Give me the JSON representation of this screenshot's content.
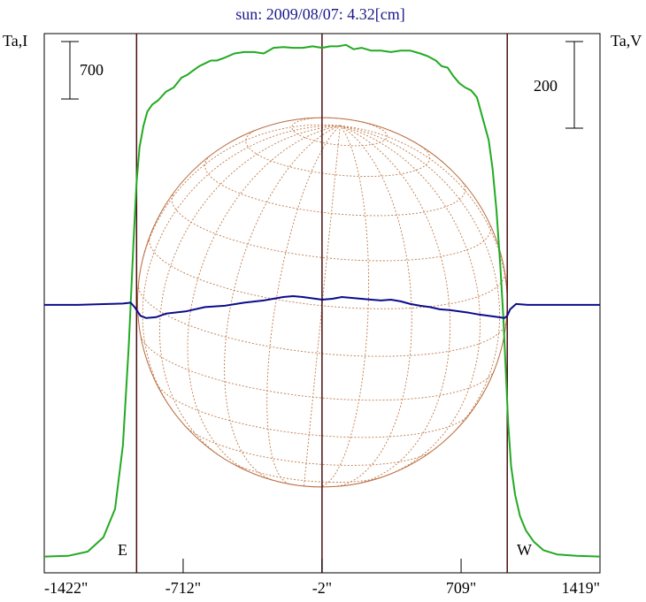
{
  "chart_data": {
    "type": "line",
    "title": "sun: 2009/08/07: 4.32[cm]",
    "ylabel_left": "Ta,I",
    "ylabel_right": "Ta,V",
    "scale_left_label": "700",
    "scale_right_label": "200",
    "limb_labels": {
      "east": "E",
      "west": "W"
    },
    "xlim": [
      -1422,
      1419
    ],
    "x_ticks": [
      -1422,
      -712,
      -2,
      709,
      1419
    ],
    "x_tick_labels": [
      "-1422\"",
      "-712\"",
      "-2\"",
      "709\"",
      "1419\""
    ],
    "ylim_left": [
      0,
      3700
    ],
    "ylim_right": [
      -580,
      620
    ],
    "reference_lines_x": [
      -950,
      -2,
      945
    ],
    "disk_radius_arcsec": 945,
    "series": [
      {
        "key": "stokes_i",
        "axis": "left",
        "color": "#22aa22",
        "x": [
          -1422,
          -1300,
          -1200,
          -1120,
          -1060,
          -1020,
          -990,
          -965,
          -950,
          -935,
          -915,
          -895,
          -870,
          -840,
          -800,
          -760,
          -720,
          -690,
          -660,
          -630,
          -600,
          -570,
          -540,
          -500,
          -450,
          -400,
          -350,
          -300,
          -250,
          -200,
          -150,
          -100,
          -50,
          -2,
          40,
          80,
          120,
          160,
          200,
          250,
          300,
          350,
          400,
          450,
          500,
          540,
          580,
          610,
          640,
          670,
          700,
          730,
          760,
          790,
          820,
          850,
          870,
          890,
          910,
          925,
          940,
          950,
          965,
          985,
          1010,
          1040,
          1080,
          1130,
          1200,
          1300,
          1419
        ],
        "y": [
          15,
          20,
          50,
          150,
          350,
          800,
          1500,
          2250,
          2650,
          2900,
          3050,
          3150,
          3200,
          3230,
          3290,
          3320,
          3390,
          3410,
          3440,
          3470,
          3490,
          3510,
          3510,
          3530,
          3560,
          3570,
          3570,
          3560,
          3600,
          3605,
          3600,
          3600,
          3610,
          3600,
          3610,
          3610,
          3620,
          3590,
          3600,
          3580,
          3580,
          3570,
          3580,
          3580,
          3560,
          3540,
          3510,
          3470,
          3460,
          3400,
          3350,
          3320,
          3300,
          3250,
          3100,
          2950,
          2750,
          2450,
          2050,
          1700,
          1250,
          950,
          650,
          450,
          300,
          200,
          120,
          60,
          30,
          20,
          15
        ]
      },
      {
        "key": "stokes_v",
        "axis": "right",
        "color": "#0b0b8c",
        "x": [
          -1422,
          -1250,
          -1100,
          -1020,
          -980,
          -960,
          -945,
          -930,
          -900,
          -850,
          -800,
          -700,
          -600,
          -500,
          -400,
          -300,
          -200,
          -150,
          -100,
          -50,
          -2,
          50,
          100,
          150,
          200,
          250,
          300,
          350,
          400,
          450,
          500,
          550,
          600,
          650,
          700,
          750,
          800,
          850,
          900,
          930,
          945,
          960,
          990,
          1050,
          1200,
          1419
        ],
        "y": [
          0,
          0,
          2,
          3,
          5,
          -5,
          -15,
          -25,
          -30,
          -28,
          -20,
          -15,
          -5,
          -2,
          5,
          10,
          18,
          20,
          18,
          15,
          12,
          14,
          18,
          16,
          14,
          12,
          10,
          12,
          8,
          2,
          -2,
          -5,
          -10,
          -12,
          -15,
          -18,
          -22,
          -25,
          -28,
          -30,
          -25,
          -10,
          2,
          0,
          0,
          0
        ]
      }
    ]
  }
}
